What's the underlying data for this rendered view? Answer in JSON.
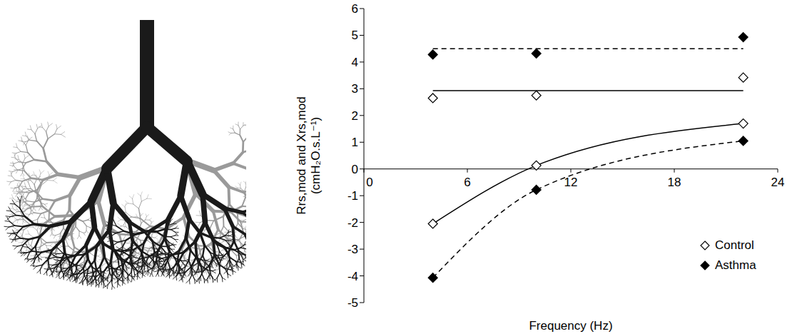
{
  "chart_data": {
    "type": "scatter",
    "xlabel": "Frequency (Hz)",
    "ylabel": "Rrs,mod and Xrs,mod (cmH₂O.s.L⁻¹)",
    "x": [
      4,
      10,
      22
    ],
    "xlim": [
      0,
      24
    ],
    "xticks": [
      0,
      6,
      12,
      18,
      24
    ],
    "ylim": [
      -5,
      6
    ],
    "yticks": [
      -5,
      -4,
      -3,
      -2,
      -1,
      0,
      1,
      2,
      3,
      4,
      5,
      6
    ],
    "legend": "lower right",
    "series": [
      {
        "name": "Control",
        "color": "#000000",
        "marker": "diamond-open",
        "line_style": "solid",
        "rrs": [
          2.65,
          2.75,
          3.42
        ],
        "rrs_fit": 2.93,
        "xrs": [
          -2.05,
          0.13,
          1.7
        ]
      },
      {
        "name": "Asthma",
        "color": "#000000",
        "marker": "diamond",
        "line_style": "dashed",
        "rrs": [
          4.28,
          4.32,
          4.93
        ],
        "rrs_fit": 4.5,
        "xrs": [
          -4.07,
          -0.78,
          1.05
        ]
      }
    ]
  }
}
